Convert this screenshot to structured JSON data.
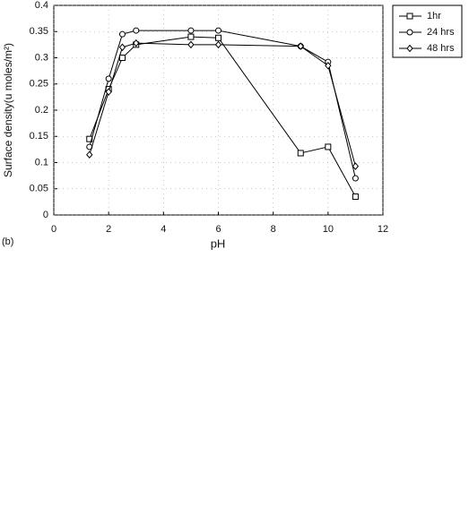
{
  "chart_data": {
    "type": "line",
    "panel_label": "(b)",
    "x_label": "pH",
    "y_label": "Surface density(u moles/m²)",
    "xlim": [
      0,
      12
    ],
    "xticks": [
      0,
      2,
      4,
      6,
      8,
      10,
      12
    ],
    "ylim": [
      0,
      0.4
    ],
    "yticks": [
      0,
      0.05,
      0.1,
      0.15,
      0.2,
      0.25,
      0.3,
      0.35,
      0.4
    ],
    "grid": true,
    "legend": "outside-right",
    "series": [
      {
        "name": "1hr",
        "color": "#000000",
        "marker": "square",
        "x": [
          1.3,
          2,
          2.5,
          3,
          5,
          6,
          9,
          10,
          11
        ],
        "values": [
          0.145,
          0.24,
          0.3,
          0.325,
          0.34,
          0.338,
          0.118,
          0.13,
          0.035
        ]
      },
      {
        "name": "24 hrs",
        "color": "#000000",
        "marker": "circle",
        "x": [
          1.3,
          2,
          2.5,
          3,
          5,
          6,
          9,
          10,
          11
        ],
        "values": [
          0.13,
          0.26,
          0.345,
          0.352,
          0.352,
          0.352,
          0.322,
          0.292,
          0.07
        ]
      },
      {
        "name": "48 hrs",
        "color": "#000000",
        "marker": "diamond",
        "x": [
          1.3,
          2,
          2.5,
          3,
          5,
          6,
          9,
          10,
          11
        ],
        "values": [
          0.115,
          0.235,
          0.32,
          0.328,
          0.325,
          0.325,
          0.322,
          0.285,
          0.093
        ]
      }
    ]
  }
}
